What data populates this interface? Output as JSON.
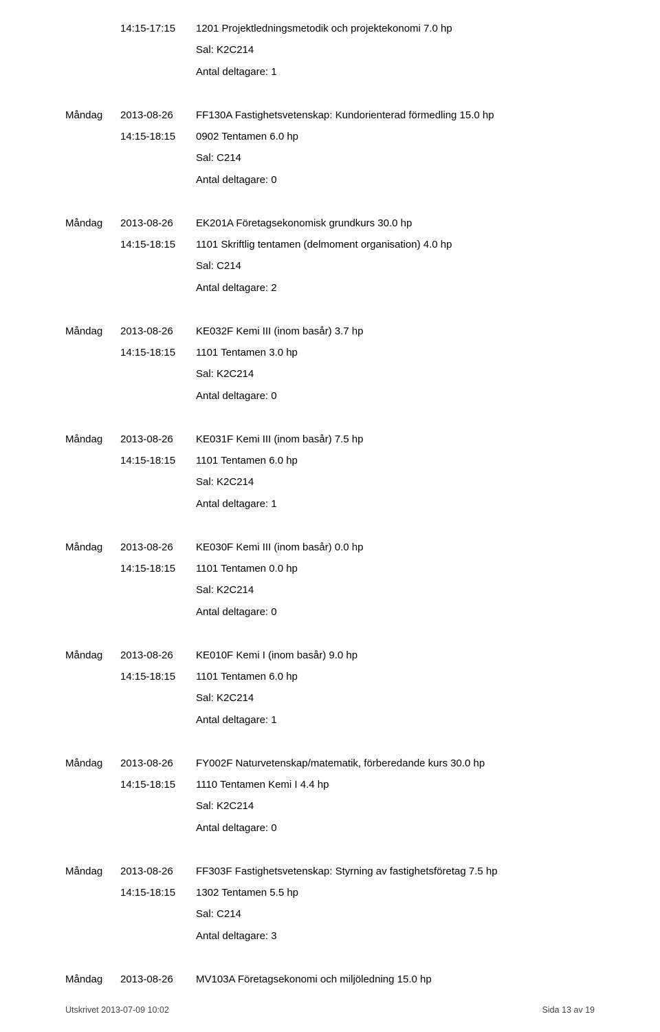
{
  "entries": [
    {
      "day": "",
      "date": "",
      "time": "14:15-17:15",
      "course": "1201 Projektledningsmetodik och projektekonomi 7.0 hp",
      "room": "Sal: K2C214",
      "participants": "Antal deltagare: 1"
    },
    {
      "day": "Måndag",
      "date": "2013-08-26",
      "time": "14:15-18:15",
      "course": "FF130A Fastighetsvetenskap: Kundorienterad förmedling 15.0 hp",
      "exam": "0902 Tentamen 6.0 hp",
      "room": "Sal: C214",
      "participants": "Antal deltagare: 0"
    },
    {
      "day": "Måndag",
      "date": "2013-08-26",
      "time": "14:15-18:15",
      "course": "EK201A Företagsekonomisk grundkurs 30.0 hp",
      "exam": "1101 Skriftlig tentamen (delmoment organisation) 4.0 hp",
      "room": "Sal: C214",
      "participants": "Antal deltagare: 2"
    },
    {
      "day": "Måndag",
      "date": "2013-08-26",
      "time": "14:15-18:15",
      "course": "KE032F Kemi III (inom basår) 3.7 hp",
      "exam": "1101 Tentamen 3.0 hp",
      "room": "Sal: K2C214",
      "participants": "Antal deltagare: 0"
    },
    {
      "day": "Måndag",
      "date": "2013-08-26",
      "time": "14:15-18:15",
      "course": "KE031F Kemi III (inom basår) 7.5 hp",
      "exam": "1101 Tentamen 6.0 hp",
      "room": "Sal: K2C214",
      "participants": "Antal deltagare: 1"
    },
    {
      "day": "Måndag",
      "date": "2013-08-26",
      "time": "14:15-18:15",
      "course": "KE030F Kemi III (inom basår) 0.0 hp",
      "exam": "1101 Tentamen 0.0 hp",
      "room": "Sal: K2C214",
      "participants": "Antal deltagare: 0"
    },
    {
      "day": "Måndag",
      "date": "2013-08-26",
      "time": "14:15-18:15",
      "course": "KE010F Kemi I (inom basår) 9.0 hp",
      "exam": "1101 Tentamen 6.0 hp",
      "room": "Sal: K2C214",
      "participants": "Antal deltagare: 1"
    },
    {
      "day": "Måndag",
      "date": "2013-08-26",
      "time": "14:15-18:15",
      "course": "FY002F Naturvetenskap/matematik, förberedande kurs 30.0 hp",
      "exam": "1110 Tentamen Kemi I 4.4 hp",
      "room": "Sal: K2C214",
      "participants": "Antal deltagare: 0"
    },
    {
      "day": "Måndag",
      "date": "2013-08-26",
      "time": "14:15-18:15",
      "course": "FF303F Fastighetsvetenskap: Styrning av fastighetsföretag 7.5 hp",
      "exam": "1302 Tentamen 5.5 hp",
      "room": "Sal: C214",
      "participants": "Antal deltagare: 3"
    },
    {
      "day": "Måndag",
      "date": "2013-08-26",
      "time": "",
      "course": "MV103A Företagsekonomi och miljöledning 15.0 hp"
    }
  ],
  "footer": {
    "left": "Utskrivet 2013-07-09 10:02",
    "right": "Sida 13 av 19"
  }
}
